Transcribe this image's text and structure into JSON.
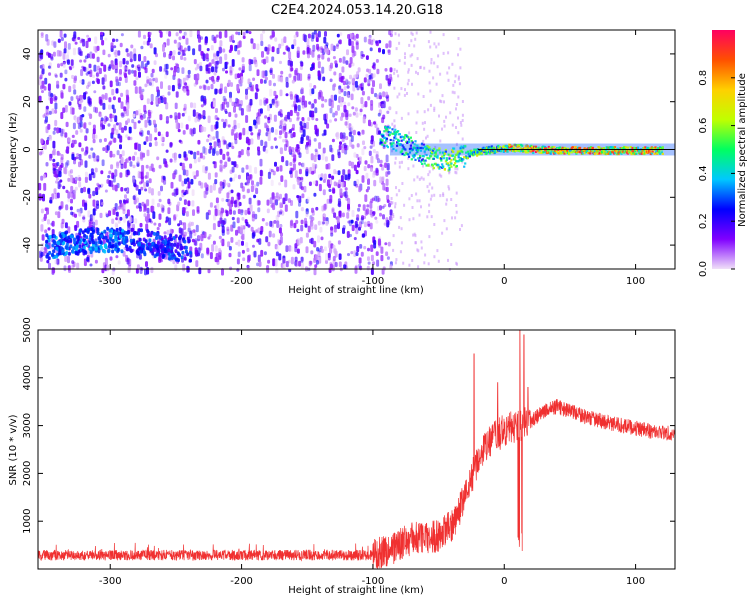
{
  "title": "C2E4.2024.053.14.20.G18",
  "chart_data": [
    {
      "type": "heatmap",
      "xlabel": "Height of straight line (km)",
      "ylabel": "Frequency (Hz)",
      "xlim": [
        -355,
        130
      ],
      "ylim": [
        -50,
        50
      ],
      "xticks": [
        -300,
        -200,
        -100,
        0,
        100
      ],
      "yticks": [
        -40,
        -20,
        0,
        20,
        40
      ],
      "colorbar": {
        "label": "Normalized spectral amplitude",
        "range": [
          0.0,
          1.0
        ],
        "ticks": [
          0.0,
          0.2,
          0.4,
          0.6,
          0.8
        ],
        "colors": [
          "#f0e0f8",
          "#8000ff",
          "#0000ff",
          "#00c8ff",
          "#00ff60",
          "#c0ff00",
          "#ffd000",
          "#ff5000",
          "#ff0060"
        ]
      },
      "features": {
        "noise_region_x": [
          -355,
          -87
        ],
        "tone_line_frequency": 0,
        "tone_line_x": [
          -87,
          130
        ],
        "low_freq_band_x": [
          -350,
          -240
        ],
        "low_freq_band_frequency": -40
      },
      "track": {
        "x": [
          -95,
          -85,
          -75,
          -65,
          -55,
          -45,
          -35,
          -25,
          -15,
          0,
          10,
          20,
          40,
          60,
          80,
          100,
          120
        ],
        "y": [
          6,
          5,
          2,
          -1,
          -3,
          -4,
          -3,
          -1,
          0,
          1,
          1,
          0.5,
          0,
          0,
          0,
          0,
          0
        ]
      }
    },
    {
      "type": "line",
      "xlabel": "Height of straight line (km)",
      "ylabel": "SNR (10 * v/v)",
      "xlim": [
        -355,
        130
      ],
      "ylim": [
        0,
        5000
      ],
      "xticks": [
        -300,
        -200,
        -100,
        0,
        100
      ],
      "yticks": [
        1000,
        2000,
        3000,
        4000,
        5000
      ],
      "color": "#f03030",
      "envelope": {
        "x": [
          -355,
          -300,
          -200,
          -110,
          -100,
          -90,
          -80,
          -70,
          -60,
          -50,
          -40,
          -30,
          -20,
          -10,
          0,
          10,
          20,
          30,
          40,
          60,
          80,
          100,
          120,
          130
        ],
        "y": [
          300,
          300,
          300,
          300,
          330,
          380,
          500,
          650,
          650,
          700,
          900,
          1500,
          2300,
          2700,
          2900,
          3000,
          3100,
          3300,
          3400,
          3200,
          3050,
          2950,
          2850,
          2850
        ]
      },
      "spikes": [
        {
          "x": -23,
          "y": 4500
        },
        {
          "x": -5,
          "y": 3900
        },
        {
          "x": 12,
          "y": 5000
        },
        {
          "x": 15,
          "y": 4900
        },
        {
          "x": 18,
          "y": 3800
        }
      ]
    }
  ]
}
